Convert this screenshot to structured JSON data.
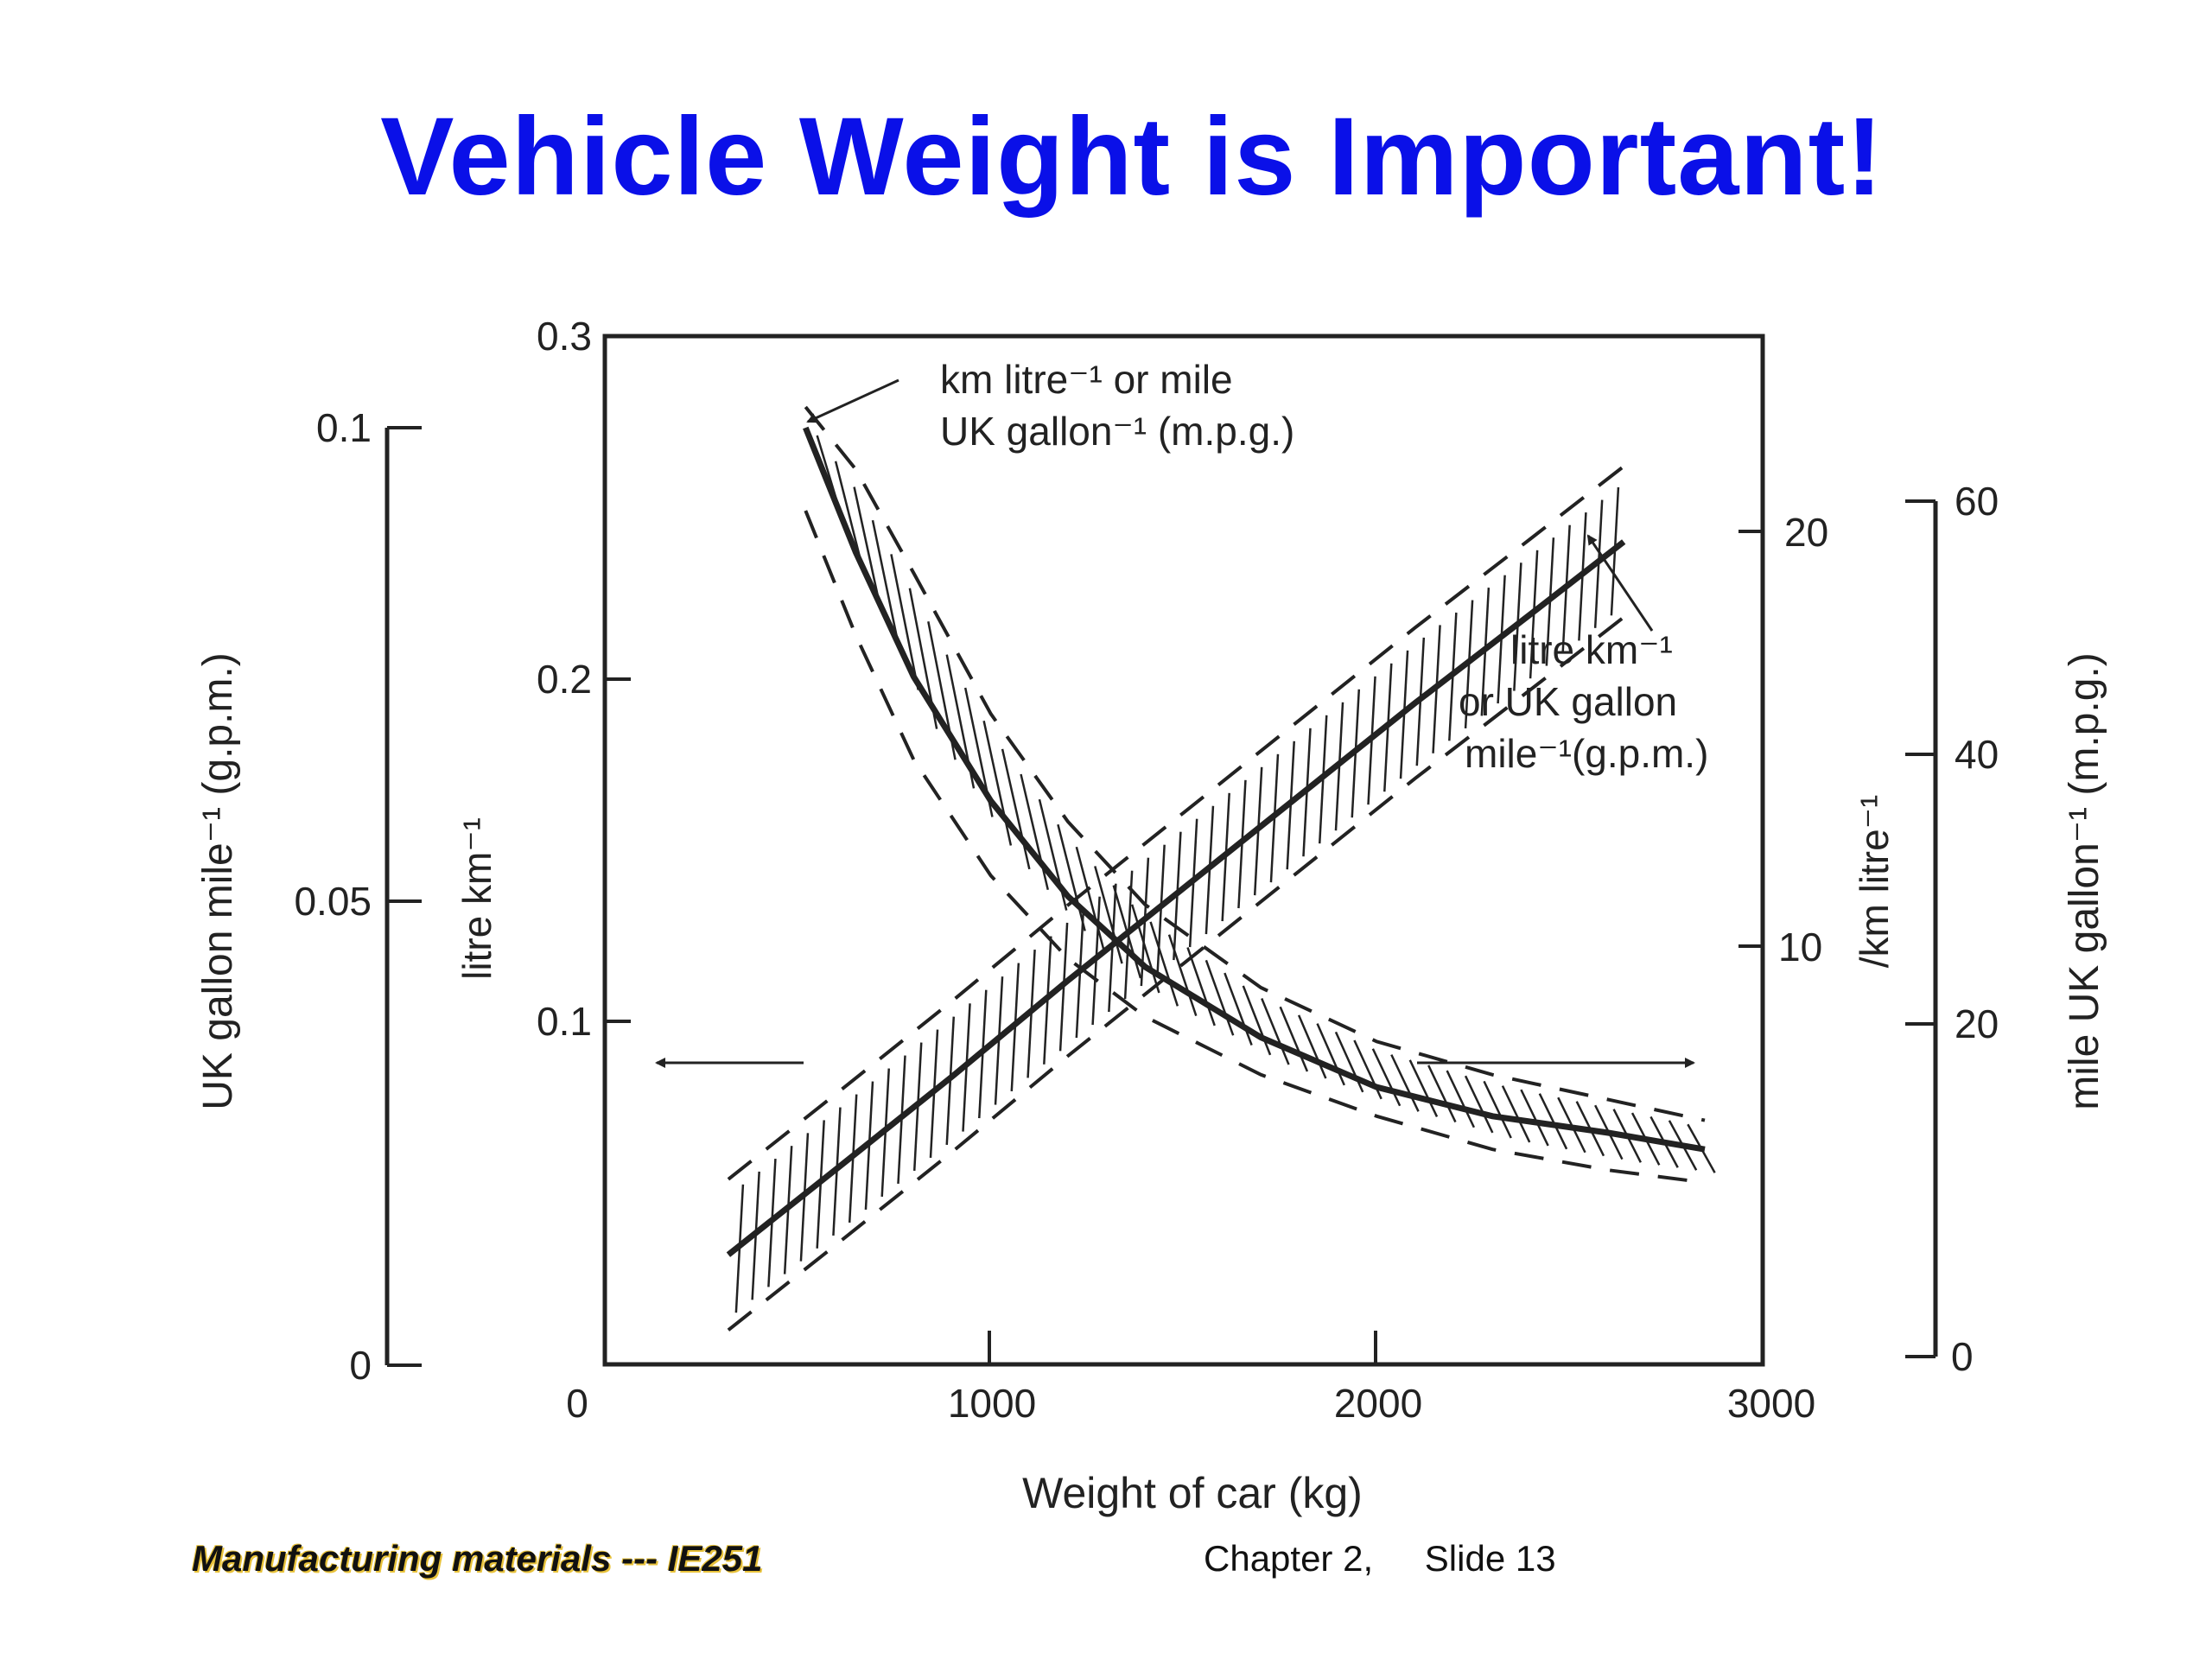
{
  "slide": {
    "title": "Vehicle Weight is Important!",
    "footer_left": "Manufacturing materials  --- IE251",
    "footer_chapter": "Chapter 2,",
    "footer_slide": "Slide 13"
  },
  "chart_data": {
    "type": "line",
    "title": "",
    "xlabel": "Weight of car (kg)",
    "xlim": [
      0,
      3000
    ],
    "x_ticks": [
      "0",
      "1000",
      "2000",
      "3000"
    ],
    "axes": {
      "left_outer": {
        "label": "UK gallon mile⁻¹ (g.p.m.)",
        "ticks": [
          "0",
          "0.05",
          "0.1"
        ],
        "range": [
          0,
          0.1
        ]
      },
      "left_inner": {
        "label": "litre km⁻¹",
        "ticks": [
          "0.1",
          "0.2",
          "0.3"
        ],
        "range": [
          0,
          0.3
        ]
      },
      "right_inner": {
        "label": "/km litre⁻¹",
        "ticks": [
          "10",
          "20"
        ],
        "range": [
          0,
          25
        ]
      },
      "right_outer": {
        "label": "mile UK gallon⁻¹ (m.p.g.)",
        "ticks": [
          "0",
          "20",
          "40",
          "60"
        ],
        "range": [
          0,
          62
        ]
      }
    },
    "annotations": {
      "consumption_top": "km litre⁻¹ or mile",
      "consumption_bottom": "UK gallon⁻¹ (m.p.g.)",
      "gpm_line1": "litre km⁻¹",
      "gpm_line2": "or UK gallon",
      "gpm_line3": "mile⁻¹(g.p.m.)"
    },
    "series": [
      {
        "axis": "left_inner",
        "x": [
          320,
          600,
          900,
          1200,
          1500,
          1800,
          2100,
          2400,
          2640
        ],
        "y": [
          0.032,
          0.057,
          0.084,
          0.112,
          0.139,
          0.166,
          0.193,
          0.219,
          0.24
        ],
        "band": 0.022
      },
      {
        "axis": "right_inner",
        "x": [
          520,
          650,
          800,
          1000,
          1200,
          1400,
          1700,
          2000,
          2300,
          2600,
          2850
        ],
        "y": [
          22.5,
          19.5,
          16.5,
          13.5,
          11.2,
          9.5,
          7.8,
          6.6,
          5.9,
          5.5,
          5.1
        ],
        "band_upper": [
          23.0,
          21.5,
          19.0,
          15.6,
          13.0,
          11.0,
          9.0,
          7.7,
          6.9,
          6.3,
          5.8
        ],
        "band_lower": [
          20.5,
          17.5,
          14.5,
          11.7,
          9.7,
          8.3,
          6.9,
          5.9,
          5.1,
          4.6,
          4.3
        ]
      }
    ],
    "grid": false,
    "legend": "none"
  }
}
